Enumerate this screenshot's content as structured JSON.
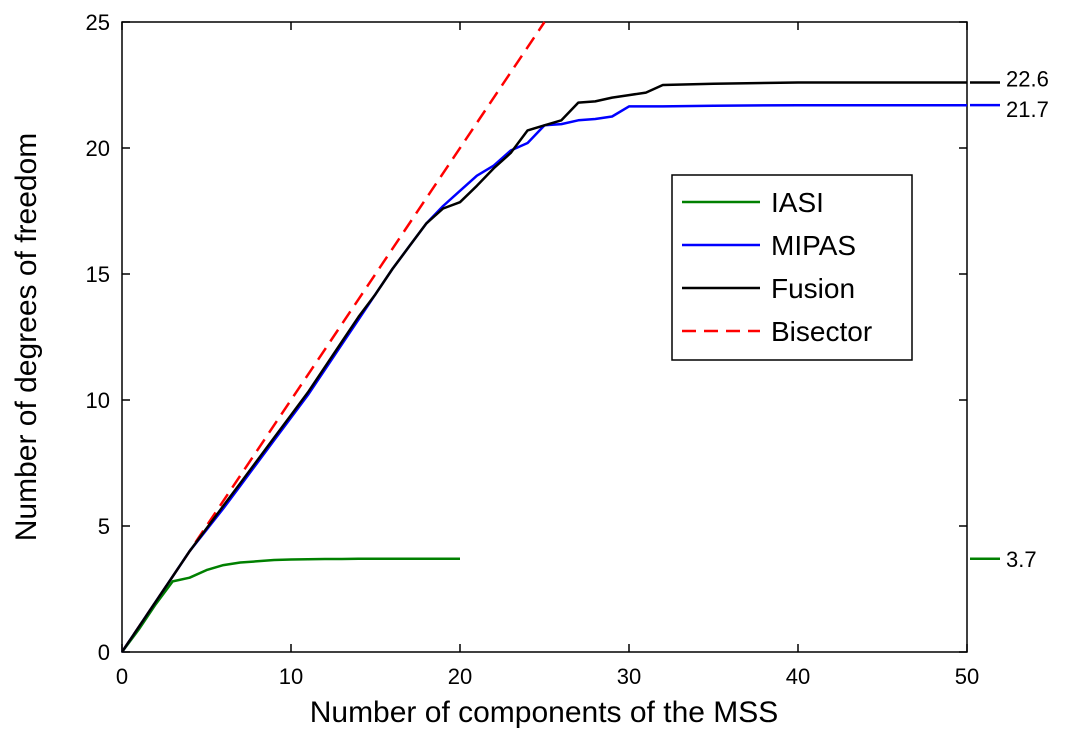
{
  "chart_data": {
    "type": "line",
    "title": "",
    "xlabel": "Number of components of the MSS",
    "ylabel": "Number of degrees of freedom",
    "xlim": [
      0,
      50
    ],
    "ylim": [
      0,
      25
    ],
    "xticks": [
      0,
      10,
      20,
      30,
      40,
      50
    ],
    "xtick_labels": [
      "0",
      "10",
      "20",
      "30",
      "40",
      "50"
    ],
    "yticks": [
      0,
      5,
      10,
      15,
      20,
      25
    ],
    "ytick_labels": [
      "0",
      "5",
      "10",
      "15",
      "20",
      "25"
    ],
    "grid": false,
    "legend_position": "center-right",
    "series": [
      {
        "name": "IASI",
        "color": "#008000",
        "dash": "solid",
        "x": [
          0,
          1,
          2,
          3,
          4,
          5,
          6,
          7,
          8,
          9,
          10,
          11,
          12,
          13,
          14,
          15,
          16,
          17,
          18,
          19,
          20
        ],
        "y": [
          0,
          0.9,
          1.9,
          2.8,
          2.95,
          3.25,
          3.45,
          3.55,
          3.6,
          3.65,
          3.67,
          3.68,
          3.69,
          3.69,
          3.7,
          3.7,
          3.7,
          3.7,
          3.7,
          3.7,
          3.7
        ],
        "end_label": "3.7"
      },
      {
        "name": "MIPAS",
        "color": "#0000ff",
        "dash": "solid",
        "x": [
          0,
          1,
          2,
          3,
          4,
          5,
          6,
          7,
          8,
          9,
          10,
          11,
          12,
          13,
          14,
          15,
          16,
          17,
          18,
          19,
          20,
          21,
          22,
          23,
          24,
          25,
          26,
          27,
          28,
          29,
          30,
          31,
          32,
          35,
          40,
          45,
          50
        ],
        "y": [
          0,
          1.0,
          2.0,
          3.0,
          4.0,
          4.85,
          5.7,
          6.6,
          7.5,
          8.4,
          9.3,
          10.2,
          11.2,
          12.2,
          13.2,
          14.2,
          15.2,
          16.1,
          17.0,
          17.7,
          18.3,
          18.9,
          19.3,
          19.9,
          20.2,
          20.9,
          20.95,
          21.1,
          21.15,
          21.25,
          21.65,
          21.65,
          21.65,
          21.68,
          21.7,
          21.7,
          21.7
        ],
        "end_label": "21.7"
      },
      {
        "name": "Fusion",
        "color": "#000000",
        "dash": "solid",
        "x": [
          0,
          1,
          2,
          3,
          4,
          5,
          6,
          7,
          8,
          9,
          10,
          11,
          12,
          13,
          14,
          15,
          16,
          17,
          18,
          19,
          20,
          21,
          22,
          23,
          24,
          25,
          26,
          27,
          28,
          29,
          30,
          31,
          32,
          35,
          40,
          45,
          50
        ],
        "y": [
          0,
          1.0,
          2.0,
          3.0,
          4.0,
          4.9,
          5.8,
          6.7,
          7.6,
          8.5,
          9.4,
          10.3,
          11.3,
          12.3,
          13.3,
          14.2,
          15.2,
          16.1,
          17.0,
          17.6,
          17.85,
          18.5,
          19.2,
          19.8,
          20.7,
          20.9,
          21.1,
          21.8,
          21.85,
          22.0,
          22.1,
          22.2,
          22.5,
          22.55,
          22.6,
          22.6,
          22.6
        ],
        "end_label": "22.6"
      },
      {
        "name": "Bisector",
        "color": "#ff0000",
        "dash": "dashed",
        "x": [
          0,
          25
        ],
        "y": [
          0,
          25
        ]
      }
    ]
  }
}
